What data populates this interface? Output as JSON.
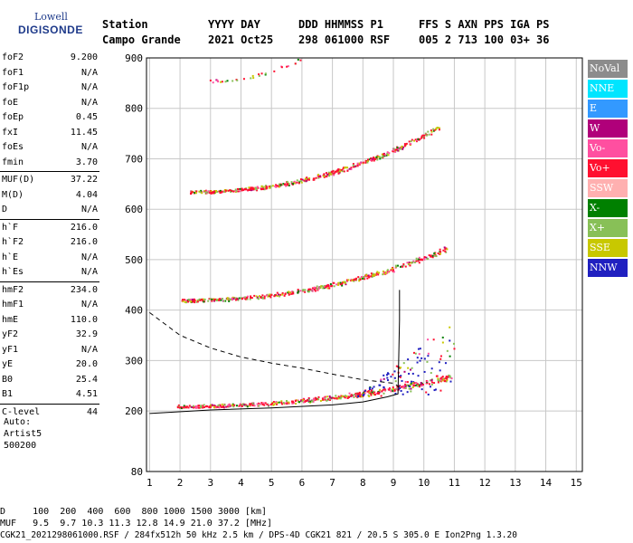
{
  "logo": {
    "line1": "Lowell",
    "line2": "DIGISONDE"
  },
  "header": {
    "row1": [
      "Station",
      "YYYY DAY",
      "DDD HHMMSS P1",
      "FFS S AXN PPS IGA PS"
    ],
    "row2": [
      "Campo Grande",
      "2021 Oct25",
      "298 061000 RSF",
      "005 2 713 100 03+ 36"
    ]
  },
  "params": [
    [
      [
        "foF2",
        "9.200"
      ],
      [
        "foF1",
        "N/A"
      ],
      [
        "foF1p",
        "N/A"
      ],
      [
        "foE",
        "N/A"
      ],
      [
        "foEp",
        "0.45"
      ],
      [
        "fxI",
        "11.45"
      ],
      [
        "foEs",
        "N/A"
      ],
      [
        "fmin",
        "3.70"
      ]
    ],
    [
      [
        "MUF(D)",
        "37.22"
      ],
      [
        "M(D)",
        "4.04"
      ],
      [
        "D",
        "N/A"
      ]
    ],
    [
      [
        "h`F",
        "216.0"
      ],
      [
        "h`F2",
        "216.0"
      ],
      [
        "h`E",
        "N/A"
      ],
      [
        "h`Es",
        "N/A"
      ]
    ],
    [
      [
        "hmF2",
        "234.0"
      ],
      [
        "hmF1",
        "N/A"
      ],
      [
        "hmE",
        "110.0"
      ],
      [
        "yF2",
        "32.9"
      ],
      [
        "yF1",
        "N/A"
      ],
      [
        "yE",
        "20.0"
      ],
      [
        "B0",
        "25.4"
      ],
      [
        "B1",
        "4.51"
      ]
    ],
    [
      [
        "C-level",
        "44"
      ]
    ]
  ],
  "footer_left": [
    "Auto:",
    "Artist5",
    "500200"
  ],
  "bottom_lines": [
    "D     100  200  400  600  800 1000 1500 3000 [km]",
    "MUF   9.5  9.7 10.3 11.3 12.8 14.9 21.0 37.2 [MHz]",
    "CGK21_2021298061000.RSF / 284fx512h 50 kHz 2.5 km / DPS-4D CGK21 821 / 20.5 S 305.0 E Ion2Png 1.3.20"
  ],
  "legend": [
    {
      "label": "NoVal",
      "color": "#8c8c8c"
    },
    {
      "label": "NNE",
      "color": "#00e5ff"
    },
    {
      "label": "E",
      "color": "#3399ff"
    },
    {
      "label": "W",
      "color": "#b0007a"
    },
    {
      "label": "Vo-",
      "color": "#ff4fa0"
    },
    {
      "label": "Vo+",
      "color": "#ff1030"
    },
    {
      "label": "SSW",
      "color": "#ffb0b0"
    },
    {
      "label": "X-",
      "color": "#008000"
    },
    {
      "label": "X+",
      "color": "#88c057"
    },
    {
      "label": "SSE",
      "color": "#c8c800"
    },
    {
      "label": "NNW",
      "color": "#2020c0"
    }
  ],
  "chart_data": {
    "type": "scatter",
    "x_ticks": [
      1,
      2,
      3,
      4,
      5,
      6,
      7,
      8,
      9,
      10,
      11,
      12,
      13,
      14,
      15
    ],
    "y_ticks": [
      80,
      200,
      300,
      400,
      500,
      600,
      700,
      800,
      900
    ],
    "xlim": [
      0.9,
      15.2
    ],
    "ylim": [
      80,
      900
    ],
    "traces": [
      {
        "name": "F2 O-trace",
        "freq_start": 1.9,
        "freq_end": 10.9,
        "h_start": 210,
        "h_end": 265
      },
      {
        "name": "2F2 echo",
        "freq_start": 2.0,
        "freq_end": 10.8,
        "h_start": 420,
        "h_end": 520
      },
      {
        "name": "3F2 echo",
        "freq_start": 2.3,
        "freq_end": 10.5,
        "h_start": 635,
        "h_end": 760
      },
      {
        "name": "4F2 echo",
        "freq_start": 2.9,
        "freq_end": 6.0,
        "h_start": 855,
        "h_end": 895
      }
    ],
    "profile_solid": [
      [
        1.0,
        195
      ],
      [
        3,
        202
      ],
      [
        5,
        206
      ],
      [
        7,
        212
      ],
      [
        8,
        218
      ],
      [
        8.8,
        228
      ],
      [
        9.15,
        234
      ],
      [
        9.2,
        380
      ],
      [
        9.2,
        440
      ]
    ],
    "muf_dashed": [
      [
        1.0,
        395
      ],
      [
        2,
        350
      ],
      [
        3,
        325
      ],
      [
        4,
        307
      ],
      [
        5,
        295
      ],
      [
        6,
        285
      ],
      [
        7,
        273
      ],
      [
        8,
        262
      ],
      [
        9,
        255
      ],
      [
        9.2,
        248
      ]
    ]
  }
}
